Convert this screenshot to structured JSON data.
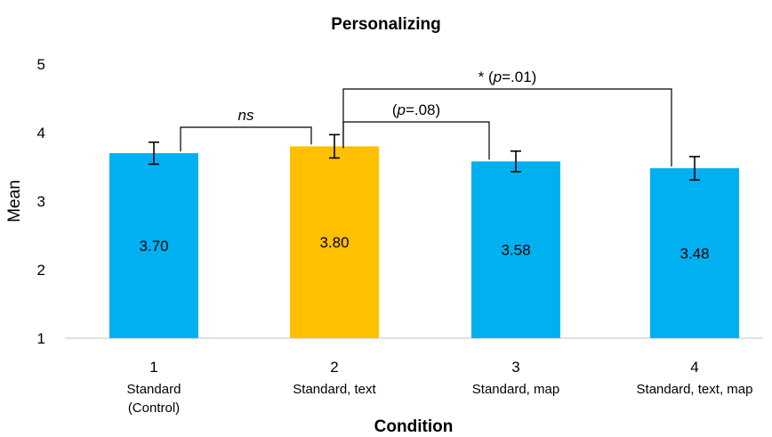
{
  "chart_data": {
    "type": "bar",
    "title": "Personalizing",
    "xlabel": "Condition",
    "ylabel": "Mean",
    "ylim": [
      1,
      5
    ],
    "yticks": [
      "1",
      "2",
      "3",
      "4",
      "5"
    ],
    "grid": false,
    "categories": [
      {
        "number": "1",
        "name_lines": [
          "Standard",
          "(Control)"
        ]
      },
      {
        "number": "2",
        "name_lines": [
          "Standard, text"
        ]
      },
      {
        "number": "3",
        "name_lines": [
          "Standard, map"
        ]
      },
      {
        "number": "4",
        "name_lines": [
          "Standard, text, map"
        ]
      }
    ],
    "values": [
      3.7,
      3.8,
      3.58,
      3.48
    ],
    "value_labels": [
      "3.70",
      "3.80",
      "3.58",
      "3.48"
    ],
    "error_bars": [
      0.16,
      0.17,
      0.15,
      0.17
    ],
    "colors": [
      "#00B0F0",
      "#FFC000",
      "#00B0F0",
      "#00B0F0"
    ],
    "comparisons": [
      {
        "from": 1,
        "to": 2,
        "segments": [
          {
            "text": "ns",
            "italic": true
          }
        ]
      },
      {
        "from": 2,
        "to": 3,
        "segments": [
          {
            "text": "(",
            "italic": false
          },
          {
            "text": "p",
            "italic": true
          },
          {
            "text": "=.08)",
            "italic": false
          }
        ]
      },
      {
        "from": 2,
        "to": 4,
        "segments": [
          {
            "text": "* (",
            "italic": false
          },
          {
            "text": "p",
            "italic": true
          },
          {
            "text": "=.01)",
            "italic": false
          }
        ]
      }
    ]
  }
}
